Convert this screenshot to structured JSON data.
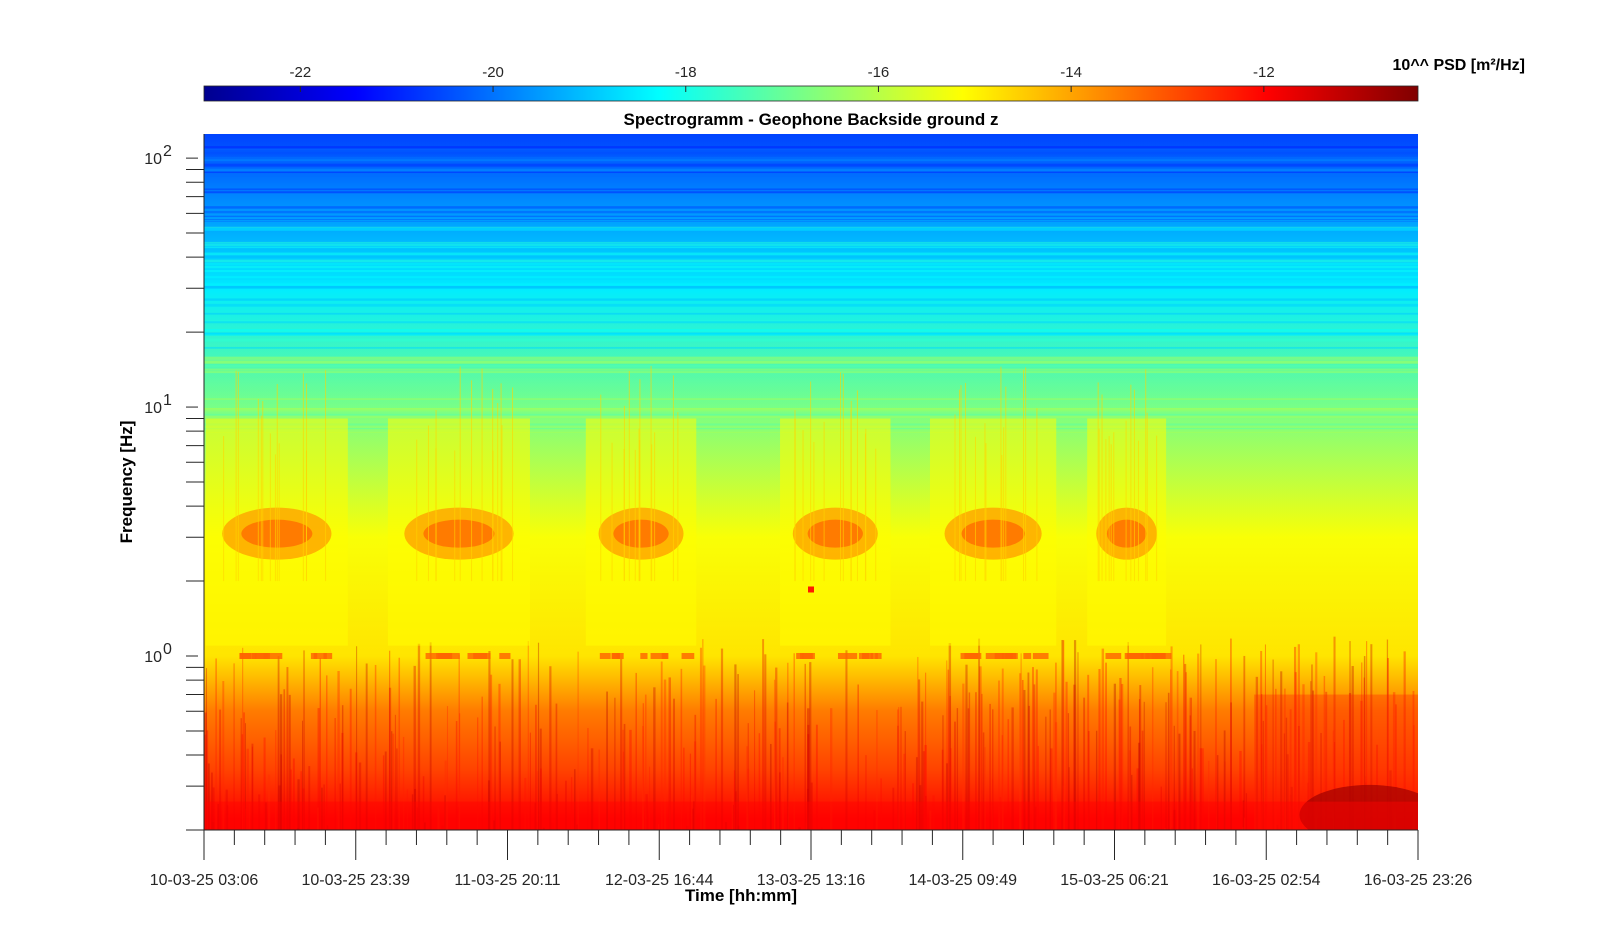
{
  "chart_data": {
    "type": "heatmap",
    "title": "Spectrogramm - Geophone Backside ground z",
    "xlabel": "Time [hh:mm]",
    "ylabel": "Frequency [Hz]",
    "x_tick_labels": [
      "10-03-25 03:06",
      "10-03-25 23:39",
      "11-03-25 20:11",
      "12-03-25 16:44",
      "13-03-25 13:16",
      "14-03-25 09:49",
      "15-03-25 06:21",
      "16-03-25 02:54",
      "16-03-25 23:26"
    ],
    "y_scale": "log",
    "y_range_hz": [
      0.2,
      125
    ],
    "y_major_ticks": [
      {
        "value": 1,
        "base": "10",
        "exp": "0"
      },
      {
        "value": 10,
        "base": "10",
        "exp": "1"
      },
      {
        "value": 100,
        "base": "10",
        "exp": "2"
      }
    ],
    "colorbar": {
      "label": "10^^ PSD [m²/Hz]",
      "colormap": "jet",
      "range": [
        -23,
        -10.4
      ],
      "ticks": [
        -22,
        -20,
        -18,
        -16,
        -14,
        -12
      ],
      "tick_labels": [
        "-22",
        "-20",
        "-18",
        "-16",
        "-14",
        "-12"
      ],
      "position": "top"
    },
    "description_values": {
      "band_log10_psd_by_frequency": [
        {
          "freq_hz": 0.22,
          "log10_psd": -12.0
        },
        {
          "freq_hz": 0.35,
          "log10_psd": -12.8
        },
        {
          "freq_hz": 0.6,
          "log10_psd": -13.5
        },
        {
          "freq_hz": 1.0,
          "log10_psd": -14.8
        },
        {
          "freq_hz": 3.0,
          "log10_psd": -15.2
        },
        {
          "freq_hz": 10,
          "log10_psd": -16.8
        },
        {
          "freq_hz": 30,
          "log10_psd": -18.5
        },
        {
          "freq_hz": 100,
          "log10_psd": -20.3
        }
      ]
    }
  }
}
